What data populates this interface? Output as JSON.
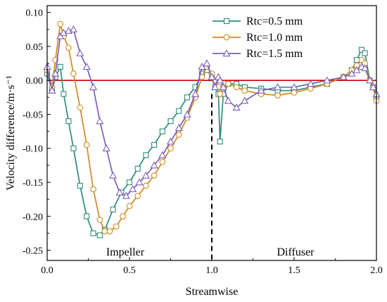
{
  "chart_data": {
    "type": "line",
    "xlabel": "Streamwise",
    "ylabel": "Velocity difference/m·s⁻¹",
    "xlim": [
      0.0,
      2.0
    ],
    "ylim": [
      -0.265,
      0.11
    ],
    "xticks": [
      "0.0",
      "0.5",
      "1.0",
      "1.5",
      "2.0"
    ],
    "xtick_values": [
      0.0,
      0.5,
      1.0,
      1.5,
      2.0
    ],
    "yticks": [
      "0.10",
      "0.05",
      "0.00",
      "-0.05",
      "-0.10",
      "-0.15",
      "-0.20",
      "-0.25"
    ],
    "ytick_values": [
      0.1,
      0.05,
      0.0,
      -0.05,
      -0.1,
      -0.15,
      -0.2,
      -0.25
    ],
    "legend_position": "top-right",
    "reference_line": {
      "y": 0.0,
      "color": "#cc0000"
    },
    "divider": {
      "x": 1.0,
      "style": "dashed"
    },
    "annotations": [
      {
        "text": "Impeller",
        "x": 0.5,
        "y": -0.238
      },
      {
        "text": "Diffuser",
        "x": 1.5,
        "y": -0.238
      }
    ],
    "series": [
      {
        "name": "Rtc=0.5 mm",
        "color": "#2e8b7a",
        "marker": "square",
        "x": [
          0.0,
          0.03,
          0.05,
          0.08,
          0.1,
          0.13,
          0.16,
          0.2,
          0.24,
          0.28,
          0.32,
          0.35,
          0.4,
          0.45,
          0.5,
          0.55,
          0.6,
          0.65,
          0.7,
          0.75,
          0.8,
          0.85,
          0.9,
          0.94,
          0.97,
          1.0,
          1.02,
          1.04,
          1.05,
          1.07,
          1.1,
          1.15,
          1.2,
          1.3,
          1.4,
          1.5,
          1.6,
          1.7,
          1.8,
          1.85,
          1.88,
          1.91,
          1.93,
          1.96,
          1.98,
          2.0
        ],
        "y": [
          0.01,
          -0.015,
          0.005,
          0.02,
          -0.02,
          -0.06,
          -0.1,
          -0.155,
          -0.2,
          -0.225,
          -0.228,
          -0.22,
          -0.19,
          -0.165,
          -0.15,
          -0.13,
          -0.11,
          -0.095,
          -0.075,
          -0.06,
          -0.045,
          -0.025,
          -0.01,
          0.01,
          0.015,
          0.005,
          -0.01,
          -0.02,
          -0.09,
          -0.02,
          -0.005,
          -0.005,
          -0.01,
          -0.012,
          -0.015,
          -0.015,
          -0.01,
          -0.005,
          0.005,
          0.015,
          0.03,
          0.045,
          0.04,
          0.0,
          -0.01,
          -0.025
        ]
      },
      {
        "name": "Rtc=1.0 mm",
        "color": "#d08a1e",
        "marker": "circle",
        "x": [
          0.0,
          0.03,
          0.05,
          0.08,
          0.1,
          0.13,
          0.16,
          0.2,
          0.24,
          0.28,
          0.32,
          0.35,
          0.38,
          0.42,
          0.46,
          0.5,
          0.55,
          0.6,
          0.65,
          0.7,
          0.75,
          0.8,
          0.85,
          0.9,
          0.94,
          0.97,
          1.0,
          1.02,
          1.04,
          1.05,
          1.07,
          1.1,
          1.15,
          1.2,
          1.3,
          1.4,
          1.5,
          1.6,
          1.7,
          1.8,
          1.85,
          1.88,
          1.91,
          1.93,
          1.96,
          1.98,
          2.0
        ],
        "y": [
          0.015,
          -0.01,
          0.03,
          0.083,
          0.065,
          0.048,
          0.01,
          -0.04,
          -0.095,
          -0.16,
          -0.205,
          -0.222,
          -0.222,
          -0.215,
          -0.2,
          -0.185,
          -0.17,
          -0.155,
          -0.14,
          -0.12,
          -0.1,
          -0.08,
          -0.055,
          -0.025,
          0.005,
          0.02,
          0.01,
          0.0,
          -0.01,
          -0.02,
          -0.01,
          -0.005,
          -0.01,
          -0.015,
          -0.02,
          -0.022,
          -0.018,
          -0.012,
          -0.005,
          0.005,
          0.015,
          0.022,
          0.03,
          0.025,
          0.0,
          -0.01,
          -0.03
        ]
      },
      {
        "name": "Rtc=1.5 mm",
        "color": "#7a5fb5",
        "marker": "triangle",
        "x": [
          0.0,
          0.03,
          0.05,
          0.08,
          0.1,
          0.13,
          0.16,
          0.2,
          0.24,
          0.28,
          0.32,
          0.36,
          0.4,
          0.44,
          0.48,
          0.52,
          0.56,
          0.6,
          0.65,
          0.7,
          0.75,
          0.8,
          0.85,
          0.9,
          0.94,
          0.97,
          1.0,
          1.02,
          1.04,
          1.05,
          1.07,
          1.1,
          1.15,
          1.2,
          1.3,
          1.4,
          1.5,
          1.6,
          1.7,
          1.8,
          1.85,
          1.88,
          1.91,
          1.93,
          1.96,
          1.98,
          2.0
        ],
        "y": [
          0.02,
          -0.015,
          0.01,
          0.065,
          0.07,
          0.073,
          0.075,
          0.04,
          0.02,
          -0.01,
          -0.06,
          -0.1,
          -0.14,
          -0.165,
          -0.17,
          -0.16,
          -0.15,
          -0.14,
          -0.125,
          -0.11,
          -0.09,
          -0.07,
          -0.05,
          -0.02,
          0.02,
          0.025,
          0.005,
          -0.01,
          0.005,
          0.0,
          -0.01,
          -0.03,
          -0.04,
          -0.03,
          -0.015,
          -0.01,
          -0.01,
          -0.005,
          0.0,
          0.005,
          0.01,
          0.015,
          0.02,
          0.018,
          0.0,
          -0.01,
          -0.02
        ]
      }
    ]
  }
}
